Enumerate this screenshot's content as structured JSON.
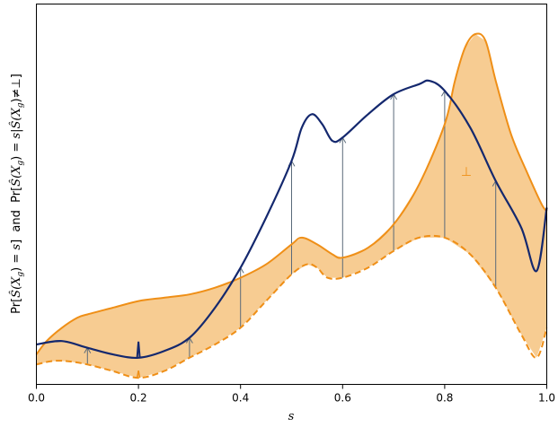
{
  "colors": {
    "fill": "#f7cc92",
    "orange": "#ef8f17",
    "navy": "#14286e",
    "arrow": "#5a6a7a"
  },
  "chart_data": {
    "type": "area",
    "xlim": [
      0.0,
      1.0
    ],
    "ylim": [
      0.0,
      10.0
    ],
    "xlabel": "s",
    "ylabel": "Pr[Ŝ(X_g) = s]  and  Pr[Ŝ(X_g) = s | Ŝ(X_g) ≠ ⊥]",
    "ylabel_parts": {
      "pre1": "Pr[",
      "s1": "Ŝ",
      "x1": "(X",
      "g1": "g",
      "mid1": ") = ",
      "v1": "s",
      "close1": "]",
      "and": "  and  ",
      "pre2": "Pr[",
      "s2": "Ŝ",
      "x2": "(X",
      "g2": "g",
      "mid2": ") = ",
      "v2": "s",
      "bar": "|",
      "s3": "Ŝ",
      "x3": "(X",
      "g3": "g",
      "neq": ")≠⊥]"
    },
    "xticks": [
      "0.0",
      "0.2",
      "0.4",
      "0.6",
      "0.8",
      "1.0"
    ],
    "annotation": "⊥",
    "grid": false,
    "series": [
      {
        "role": "upper-orange",
        "x": [
          0.0,
          0.02,
          0.05,
          0.08,
          0.1,
          0.15,
          0.2,
          0.25,
          0.3,
          0.35,
          0.4,
          0.45,
          0.5,
          0.52,
          0.55,
          0.58,
          0.6,
          0.65,
          0.7,
          0.75,
          0.8,
          0.82,
          0.84,
          0.86,
          0.88,
          0.9,
          0.93,
          0.96,
          0.99,
          1.0
        ],
        "y": [
          0.4,
          0.8,
          1.2,
          1.5,
          1.6,
          1.8,
          2.0,
          2.1,
          2.2,
          2.4,
          2.7,
          3.1,
          3.7,
          3.9,
          3.7,
          3.4,
          3.3,
          3.6,
          4.3,
          5.5,
          7.3,
          8.6,
          9.6,
          10.0,
          9.8,
          8.6,
          7.0,
          5.9,
          4.9,
          4.7
        ]
      },
      {
        "role": "lower-dashed-orange",
        "x": [
          0.0,
          0.03,
          0.06,
          0.1,
          0.15,
          0.2,
          0.25,
          0.3,
          0.35,
          0.4,
          0.45,
          0.5,
          0.53,
          0.55,
          0.57,
          0.6,
          0.65,
          0.7,
          0.75,
          0.8,
          0.85,
          0.9,
          0.95,
          0.98,
          1.0
        ],
        "y": [
          0.1,
          0.2,
          0.2,
          0.1,
          -0.1,
          -0.3,
          -0.1,
          0.3,
          0.7,
          1.2,
          2.0,
          2.8,
          3.1,
          3.0,
          2.7,
          2.7,
          3.0,
          3.5,
          3.9,
          3.9,
          3.4,
          2.4,
          1.0,
          0.3,
          1.2
        ]
      },
      {
        "role": "navy",
        "x": [
          0.0,
          0.05,
          0.1,
          0.15,
          0.2,
          0.25,
          0.3,
          0.35,
          0.4,
          0.45,
          0.5,
          0.52,
          0.54,
          0.56,
          0.58,
          0.6,
          0.65,
          0.7,
          0.75,
          0.77,
          0.8,
          0.85,
          0.9,
          0.95,
          0.98,
          1.0
        ],
        "y": [
          0.7,
          0.8,
          0.6,
          0.4,
          0.3,
          0.5,
          0.9,
          1.8,
          3.0,
          4.5,
          6.2,
          7.2,
          7.6,
          7.3,
          6.8,
          6.9,
          7.6,
          8.2,
          8.5,
          8.6,
          8.3,
          7.2,
          5.6,
          4.2,
          2.9,
          4.8
        ]
      }
    ],
    "arrows_x": [
      0.1,
      0.3,
      0.4,
      0.5,
      0.6,
      0.7,
      0.8,
      0.9
    ]
  }
}
